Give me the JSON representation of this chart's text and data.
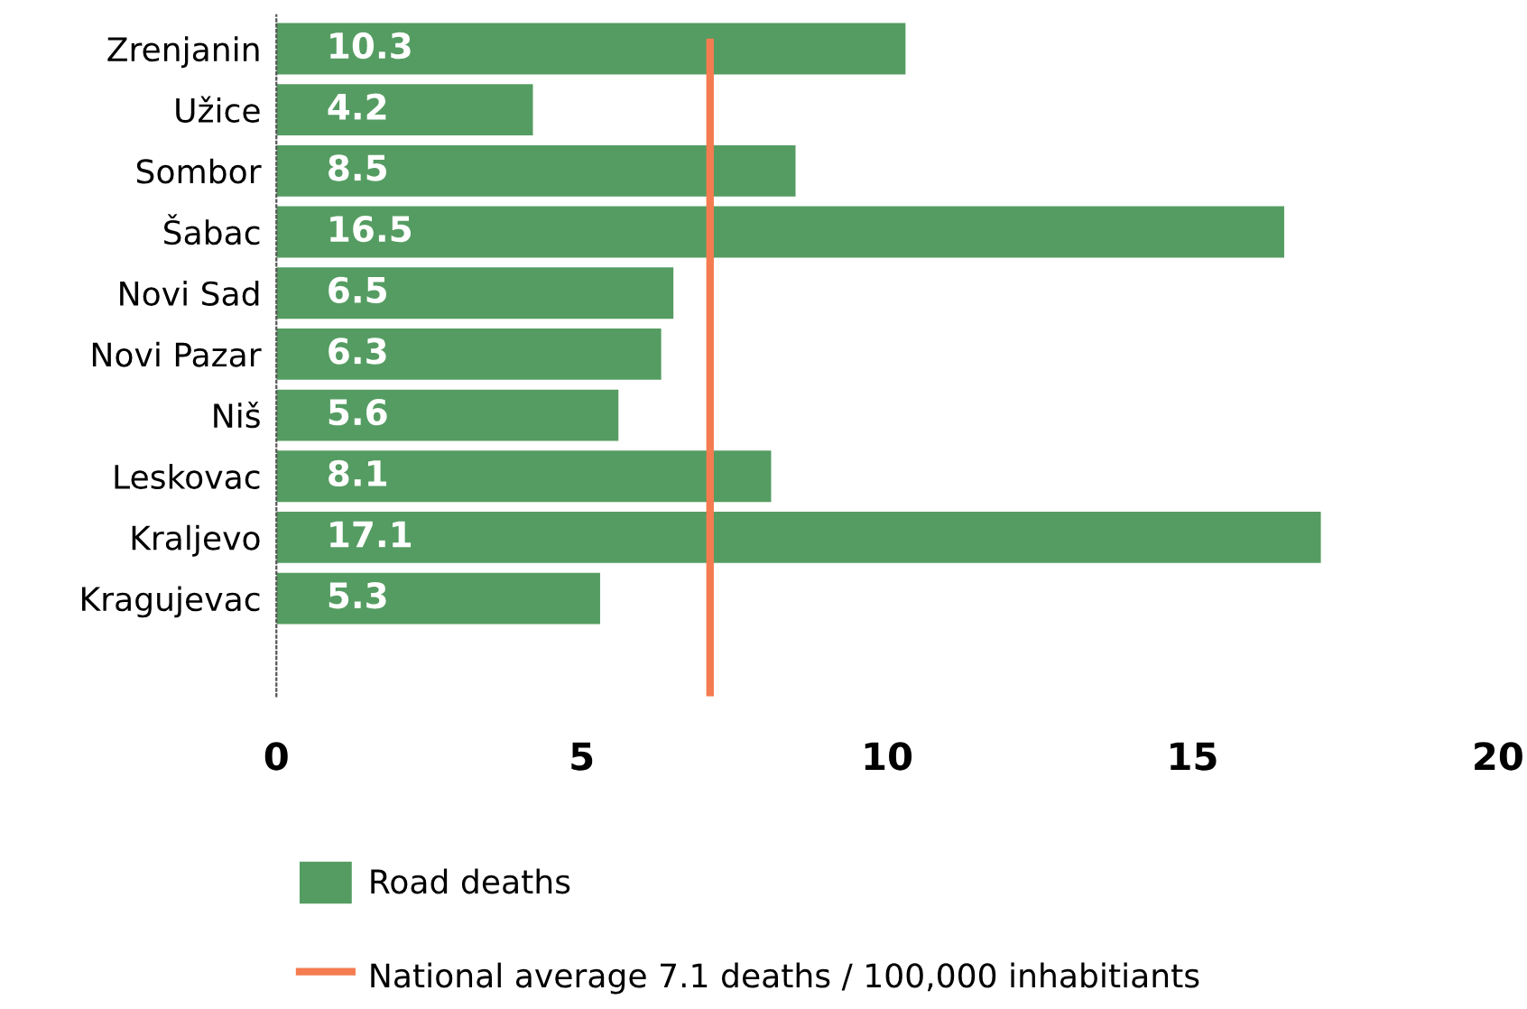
{
  "chart_data": {
    "type": "bar",
    "orientation": "horizontal",
    "categories": [
      "Zrenjanin",
      "Užice",
      "Sombor",
      "Šabac",
      "Novi Sad",
      "Novi Pazar",
      "Niš",
      "Leskovac",
      "Kraljevo",
      "Kragujevac"
    ],
    "series": [
      {
        "name": "Road deaths",
        "color": "#559c62",
        "values": [
          10.3,
          4.2,
          8.5,
          16.5,
          6.5,
          6.3,
          5.6,
          8.1,
          17.1,
          5.3
        ]
      }
    ],
    "xlim": [
      0,
      20
    ],
    "xticks": [
      0,
      5,
      10,
      15,
      20
    ],
    "ref_lines": [
      {
        "axis": "x",
        "value": 7.1,
        "label": "National average 7.1 deaths / 100,000 inhabitiants",
        "color": "#f47c50",
        "line_style": "solid"
      }
    ],
    "data_labels": true,
    "grid": false,
    "legend": "bottom"
  }
}
